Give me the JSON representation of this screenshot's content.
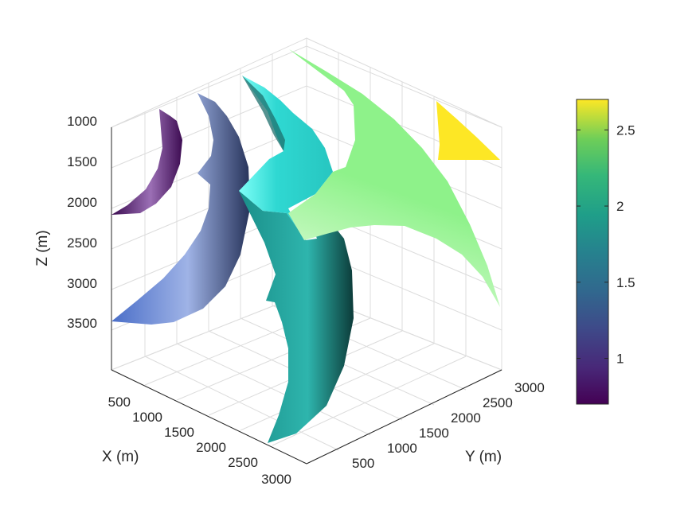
{
  "chart_data": {
    "type": "surface3d",
    "title": "",
    "xlabel": "X (m)",
    "ylabel": "Y (m)",
    "zlabel": "Z (m)",
    "x_ticks": [
      "500",
      "1000",
      "1500",
      "2000",
      "2500",
      "3000"
    ],
    "y_ticks": [
      "500",
      "1000",
      "1500",
      "2000",
      "2500",
      "3000"
    ],
    "z_ticks": [
      "1000",
      "1500",
      "2000",
      "2500",
      "3000",
      "3500"
    ],
    "z_reversed": true,
    "grid": true,
    "colorbar": {
      "position": "right",
      "colormap": "viridis",
      "limits": [
        0.7,
        2.7
      ],
      "ticks": [
        "1",
        "1.5",
        "2",
        "2.5"
      ],
      "tick_values": [
        1,
        1.5,
        2,
        2.5
      ]
    },
    "surfaces": [
      {
        "color_value": 0.72,
        "color": "#45085a"
      },
      {
        "color_value": 1.2,
        "color": "#4d6fcb"
      },
      {
        "color_value": 1.6,
        "color": "#1f8f8a"
      },
      {
        "color_value": 1.8,
        "color": "#2fd8d2"
      },
      {
        "color_value": 2.2,
        "color": "#8ef28a"
      },
      {
        "color_value": 2.7,
        "color": "#fde725"
      }
    ]
  }
}
